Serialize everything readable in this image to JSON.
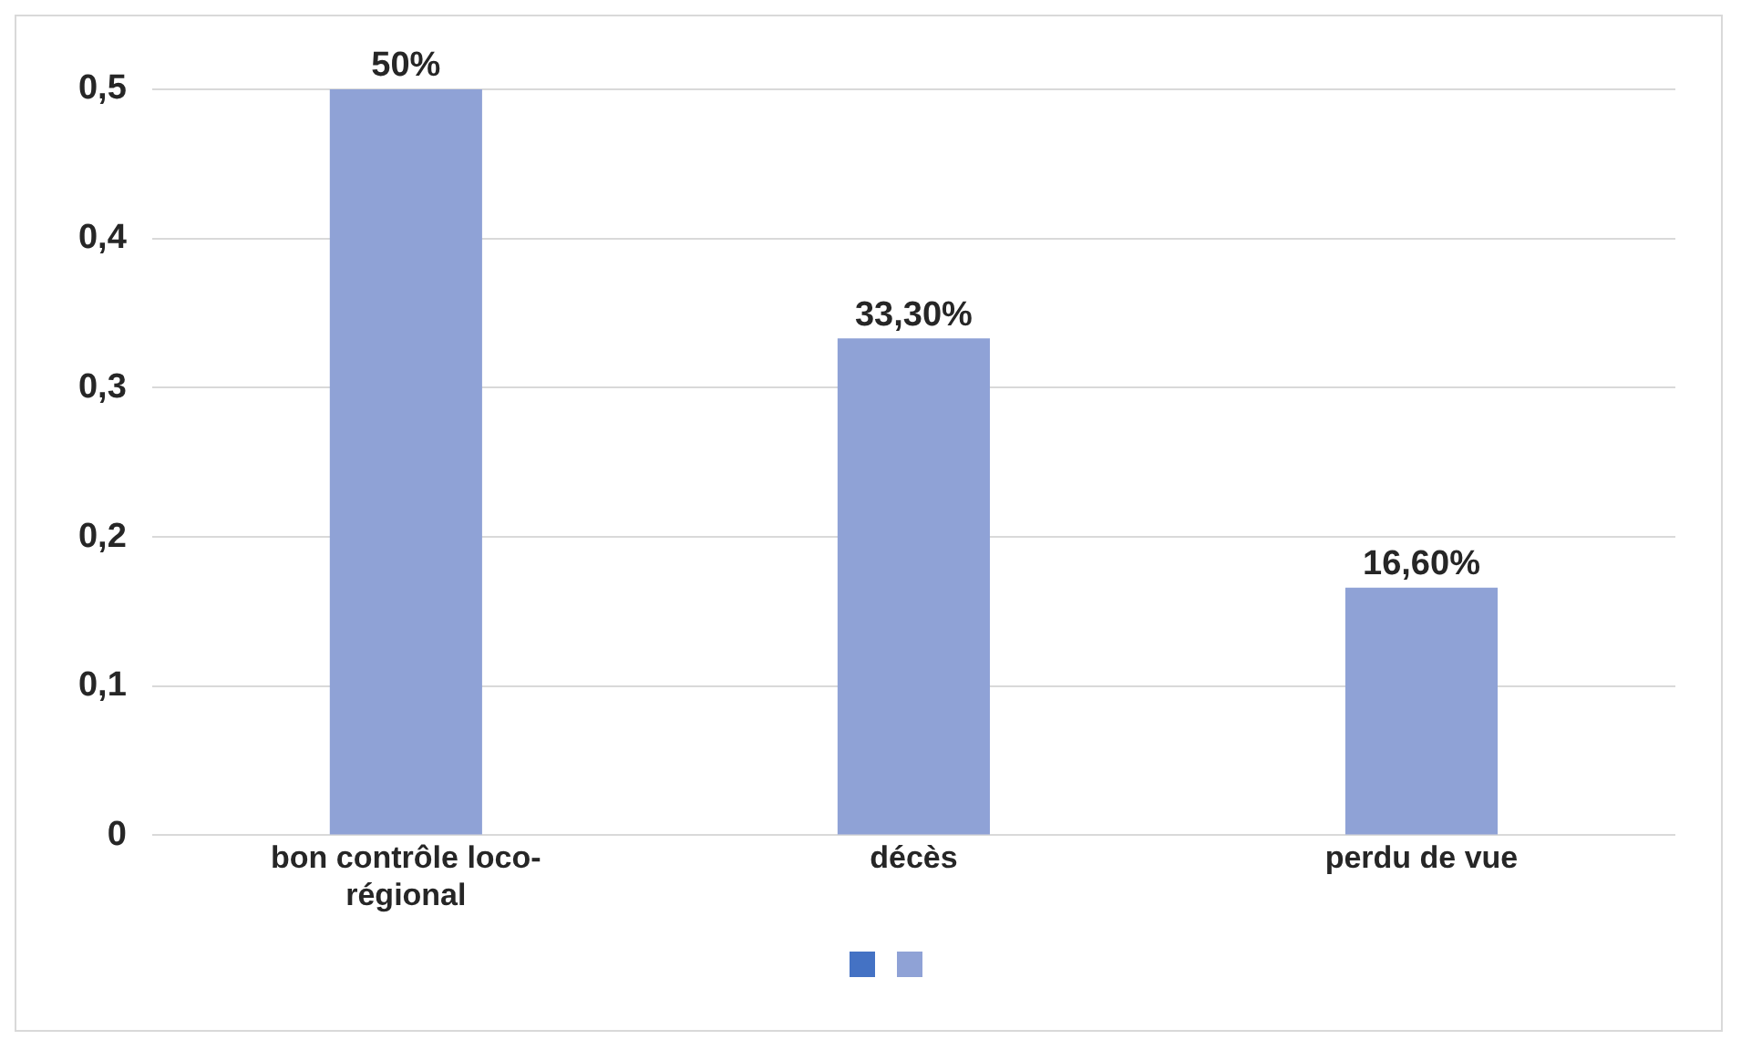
{
  "chart_data": {
    "type": "bar",
    "categories": [
      "bon contrôle loco-régional",
      "décès",
      "perdu de vue"
    ],
    "series": [
      {
        "color": "#8fa2d6",
        "values": [
          0.5,
          0.333,
          0.166
        ],
        "value_labels": [
          "50%",
          "33,30%",
          "16,60%"
        ]
      }
    ],
    "ylim": [
      0,
      0.5
    ],
    "yticks": [
      {
        "value": 0,
        "label": "0"
      },
      {
        "value": 0.1,
        "label": "0,1"
      },
      {
        "value": 0.2,
        "label": "0,2"
      },
      {
        "value": 0.3,
        "label": "0,3"
      },
      {
        "value": 0.4,
        "label": "0,4"
      },
      {
        "value": 0.5,
        "label": "0,5"
      }
    ],
    "grid": "y"
  }
}
